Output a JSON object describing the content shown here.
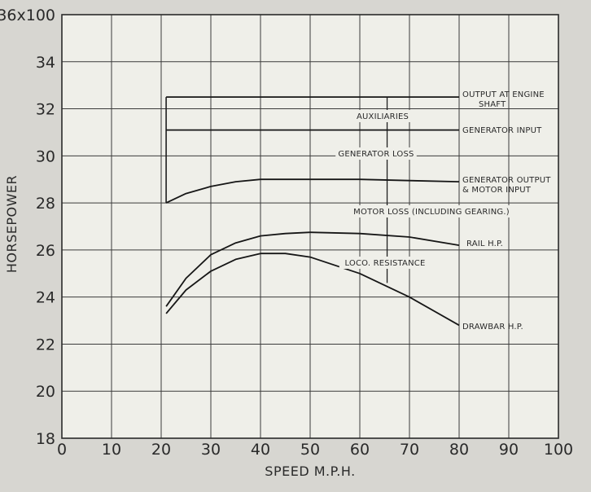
{
  "chart_data": {
    "type": "line",
    "xlabel": "SPEED M.P.H.",
    "ylabel": "HORSEPOWER",
    "y_multiplier_label": "x100",
    "xlim": [
      0,
      100
    ],
    "ylim": [
      18,
      36
    ],
    "grid": true,
    "x_ticks": [
      0,
      10,
      20,
      30,
      40,
      50,
      60,
      70,
      80,
      90,
      100
    ],
    "y_ticks": [
      18,
      20,
      22,
      24,
      26,
      28,
      30,
      32,
      34,
      36
    ],
    "series": [
      {
        "name": "OUTPUT AT ENGINE SHAFT",
        "x": [
          21,
          80
        ],
        "y": [
          32.5,
          32.5
        ]
      },
      {
        "name": "GENERATOR INPUT",
        "x": [
          21,
          80
        ],
        "y": [
          31.1,
          31.1
        ]
      },
      {
        "name": "GENERATOR OUTPUT & MOTOR INPUT",
        "x": [
          21,
          25,
          30,
          35,
          40,
          45,
          50,
          60,
          70,
          80
        ],
        "y": [
          28.0,
          28.4,
          28.7,
          28.9,
          29.0,
          29.0,
          29.0,
          29.0,
          28.95,
          28.9
        ]
      },
      {
        "name": "RAIL H.P.",
        "x": [
          21,
          25,
          30,
          35,
          40,
          45,
          50,
          60,
          70,
          80
        ],
        "y": [
          23.6,
          24.8,
          25.8,
          26.3,
          26.6,
          26.7,
          26.75,
          26.7,
          26.55,
          26.2
        ]
      },
      {
        "name": "DRAWBAR H.P.",
        "x": [
          21,
          25,
          30,
          35,
          40,
          45,
          50,
          60,
          70,
          80
        ],
        "y": [
          23.3,
          24.3,
          25.1,
          25.6,
          25.85,
          25.85,
          25.7,
          25.0,
          24.0,
          22.8
        ]
      }
    ],
    "annotations": [
      "AUXILIARIES",
      "GENERATOR LOSS",
      "MOTOR LOSS (INCLUDING GEARING.)",
      "LOCO. RESISTANCE"
    ]
  }
}
